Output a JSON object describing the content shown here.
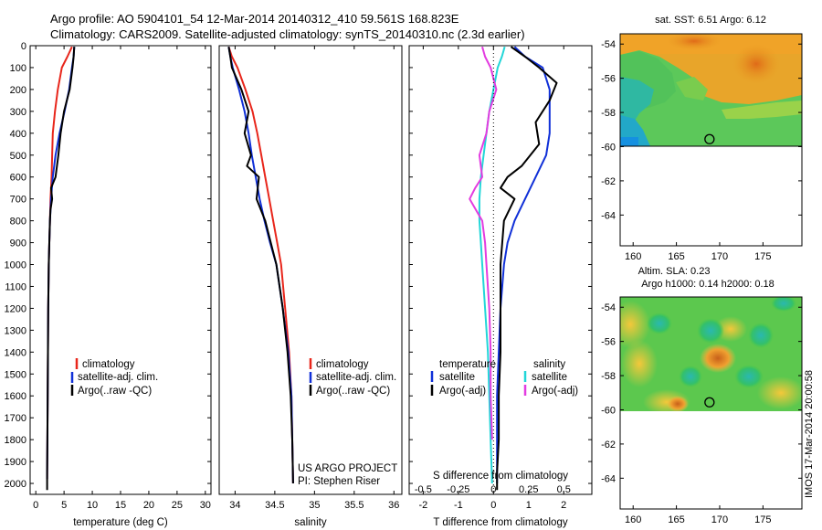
{
  "header": {
    "line1": "Argo profile: AO 5904101_54 12-Mar-2014 20140312_410 59.561S 168.823E",
    "line2": "Climatology: CARS2009. Satellite-adjusted climatology: synTS_20140310.nc (2.3d earlier)"
  },
  "credit": {
    "project": "US ARGO PROJECT",
    "pi": "PI: Stephen Riser",
    "stamp": "IMOS 17-Mar-2014 20:00:58"
  },
  "colors": {
    "climatology": "#e8261b",
    "satellite": "#1030d8",
    "argo": "#000000",
    "salinity_satellite": "#22d6d8",
    "salinity_argo": "#e33ce0"
  },
  "chart_data": [
    {
      "type": "line",
      "id": "temperature",
      "xlabel": "temperature (deg C)",
      "ylabel": "",
      "xlim": [
        -1,
        31
      ],
      "ylim": [
        2050,
        0
      ],
      "yreverse": true,
      "xticks": [
        0,
        5,
        10,
        15,
        20,
        25,
        30
      ],
      "yticks": [
        0,
        100,
        200,
        300,
        400,
        500,
        600,
        700,
        800,
        900,
        1000,
        1100,
        1200,
        1300,
        1400,
        1500,
        1600,
        1700,
        1800,
        1900,
        2000
      ],
      "legend": [
        "climatology",
        "satellite-adj. clim.",
        "Argo(..raw -QC)"
      ],
      "legend_position": "lower-center",
      "series": [
        {
          "name": "climatology",
          "color": "#e8261b",
          "x": [
            6.4,
            5.6,
            4.6,
            3.9,
            3.4,
            3.0,
            2.9,
            2.8,
            2.6,
            2.5,
            2.4,
            2.3,
            2.2,
            2.15,
            2.1,
            2.05,
            2.0
          ],
          "y": [
            5,
            50,
            100,
            200,
            300,
            400,
            500,
            600,
            700,
            800,
            900,
            1000,
            1200,
            1400,
            1600,
            1800,
            1980
          ]
        },
        {
          "name": "satellite-adj. clim.",
          "color": "#1030d8",
          "x": [
            6.8,
            6.7,
            6.4,
            5.9,
            5.1,
            4.2,
            3.5,
            3.0,
            2.7,
            2.5,
            2.4,
            2.3,
            2.2,
            2.15,
            2.1,
            2.05,
            2.0
          ],
          "y": [
            5,
            50,
            100,
            200,
            300,
            400,
            500,
            600,
            700,
            800,
            900,
            1000,
            1200,
            1400,
            1600,
            1800,
            1980
          ]
        },
        {
          "name": "Argo(..raw -QC)",
          "color": "#000000",
          "x": [
            6.8,
            6.7,
            6.5,
            6.0,
            5.0,
            4.4,
            4.0,
            3.5,
            2.7,
            2.9,
            2.6,
            2.5,
            2.4,
            2.3,
            2.2,
            2.15,
            2.1,
            2.05,
            2.0,
            2.0
          ],
          "y": [
            5,
            50,
            100,
            200,
            300,
            400,
            500,
            600,
            650,
            700,
            750,
            800,
            900,
            1000,
            1200,
            1400,
            1600,
            1800,
            1950,
            2030
          ]
        }
      ]
    },
    {
      "type": "line",
      "id": "salinity",
      "xlabel": "salinity",
      "ylabel": "",
      "xlim": [
        33.8,
        36.1
      ],
      "ylim": [
        2050,
        0
      ],
      "yreverse": true,
      "xticks": [
        34,
        34.5,
        35,
        35.5,
        36
      ],
      "legend": [
        "climatology",
        "satellite-adj. clim.",
        "Argo(..raw -QC)"
      ],
      "legend_position": "lower-right",
      "series": [
        {
          "name": "climatology",
          "color": "#e8261b",
          "x": [
            33.92,
            33.96,
            34.03,
            34.13,
            34.22,
            34.28,
            34.33,
            34.38,
            34.43,
            34.48,
            34.53,
            34.58,
            34.63,
            34.68,
            34.71,
            34.72,
            34.73
          ],
          "y": [
            5,
            50,
            100,
            200,
            300,
            400,
            500,
            600,
            700,
            800,
            900,
            1000,
            1200,
            1400,
            1600,
            1800,
            2000
          ]
        },
        {
          "name": "satellite-adj. clim.",
          "color": "#1030d8",
          "x": [
            33.92,
            33.94,
            33.97,
            34.05,
            34.12,
            34.17,
            34.21,
            34.26,
            34.31,
            34.37,
            34.44,
            34.52,
            34.6,
            34.67,
            34.71,
            34.72,
            34.73
          ],
          "y": [
            5,
            50,
            100,
            200,
            300,
            400,
            500,
            600,
            700,
            800,
            900,
            1000,
            1200,
            1400,
            1600,
            1800,
            2000
          ]
        },
        {
          "name": "Argo(..raw -QC)",
          "color": "#000000",
          "x": [
            33.92,
            33.94,
            33.96,
            34.08,
            34.17,
            34.12,
            34.2,
            34.15,
            34.3,
            34.27,
            34.38,
            34.45,
            34.52,
            34.6,
            34.66,
            34.7,
            34.72,
            34.73
          ],
          "y": [
            5,
            50,
            100,
            200,
            300,
            400,
            500,
            550,
            600,
            700,
            800,
            900,
            1000,
            1200,
            1400,
            1600,
            1800,
            2000
          ]
        }
      ]
    },
    {
      "type": "line",
      "id": "difference",
      "xlabel": "T difference from climatology",
      "xlabel_top": "S difference from climatology",
      "ylabel": "",
      "xlim_T": [
        -2.4,
        2.8
      ],
      "xlim_S": [
        -0.6,
        0.7
      ],
      "ylim": [
        2050,
        0
      ],
      "yreverse": true,
      "xticks_T": [
        -2,
        -1,
        0,
        1,
        2
      ],
      "xticks_S": [
        -0.5,
        -0.25,
        0,
        0.25,
        0.5
      ],
      "xticklabels_S": [
        "-0.5",
        "-0.25",
        "0",
        "0.25",
        "0.5"
      ],
      "legend_titles": [
        "temperature",
        "salinity"
      ],
      "legend": [
        "satellite",
        "Argo(-adj)",
        "satellite",
        "Argo(-adj)"
      ],
      "legend_position": "lower-center",
      "series": [
        {
          "name": "satellite",
          "group": "temperature",
          "axis": "T",
          "color": "#1030d8",
          "x": [
            0.6,
            0.9,
            1.4,
            1.6,
            1.6,
            1.6,
            1.5,
            1.2,
            0.9,
            0.6,
            0.4,
            0.3,
            0.2,
            0.15,
            0.1,
            0.1,
            0.1
          ],
          "y": [
            5,
            50,
            100,
            200,
            300,
            400,
            500,
            600,
            700,
            800,
            900,
            1000,
            1200,
            1400,
            1600,
            1800,
            2000
          ]
        },
        {
          "name": "Argo(-adj)",
          "group": "temperature",
          "axis": "T",
          "color": "#000000",
          "x": [
            0.5,
            0.9,
            1.3,
            1.8,
            1.6,
            1.2,
            1.3,
            0.8,
            0.4,
            0.2,
            0.6,
            0.3,
            0.25,
            0.2,
            0.2,
            0.2,
            0.15,
            0.15,
            0.1,
            0.1
          ],
          "y": [
            5,
            50,
            100,
            170,
            250,
            350,
            450,
            550,
            600,
            650,
            700,
            800,
            900,
            1000,
            1200,
            1400,
            1600,
            1800,
            1950,
            2030
          ]
        },
        {
          "name": "satellite",
          "group": "salinity",
          "axis": "S",
          "color": "#22d6d8",
          "x": [
            0.08,
            0.06,
            0.03,
            0.0,
            -0.03,
            -0.05,
            -0.07,
            -0.09,
            -0.1,
            -0.1,
            -0.09,
            -0.08,
            -0.06,
            -0.04,
            -0.03,
            -0.02,
            -0.01
          ],
          "y": [
            5,
            50,
            100,
            200,
            300,
            400,
            500,
            600,
            700,
            800,
            900,
            1000,
            1200,
            1400,
            1600,
            1800,
            2000
          ]
        },
        {
          "name": "Argo(-adj)",
          "group": "salinity",
          "axis": "S",
          "color": "#e33ce0",
          "x": [
            -0.08,
            -0.06,
            -0.02,
            0.02,
            -0.03,
            -0.05,
            -0.1,
            -0.08,
            -0.13,
            -0.17,
            -0.08,
            -0.06,
            -0.05,
            -0.03,
            -0.02,
            -0.02,
            -0.01
          ],
          "y": [
            5,
            50,
            100,
            200,
            300,
            400,
            500,
            600,
            650,
            700,
            800,
            900,
            1000,
            1200,
            1400,
            1600,
            1800
          ]
        }
      ]
    },
    {
      "type": "heatmap",
      "id": "sst-map",
      "title": "sat. SST: 6.51 Argo: 6.12",
      "xlim": [
        158.5,
        179.5
      ],
      "ylim": [
        -65.8,
        -53.4
      ],
      "xticks": [
        160,
        165,
        170,
        175
      ],
      "yticks": [
        -54,
        -56,
        -58,
        -60,
        -62,
        -64
      ],
      "data_ylim": [
        -60.1,
        -53.4
      ],
      "marker": {
        "lon": 168.823,
        "lat": -59.561
      }
    },
    {
      "type": "heatmap",
      "id": "sla-map",
      "title": "Altim. SLA: 0.23",
      "subtitle": "Argo h1000: 0.14 h2000: 0.18",
      "xlim": [
        158.5,
        179.5
      ],
      "ylim": [
        -65.8,
        -53.4
      ],
      "xticks": [
        160,
        165,
        170,
        175
      ],
      "yticks": [
        -54,
        -56,
        -58,
        -60,
        -62,
        -64
      ],
      "data_ylim": [
        -60.1,
        -53.4
      ],
      "marker": {
        "lon": 168.823,
        "lat": -59.561
      }
    }
  ]
}
